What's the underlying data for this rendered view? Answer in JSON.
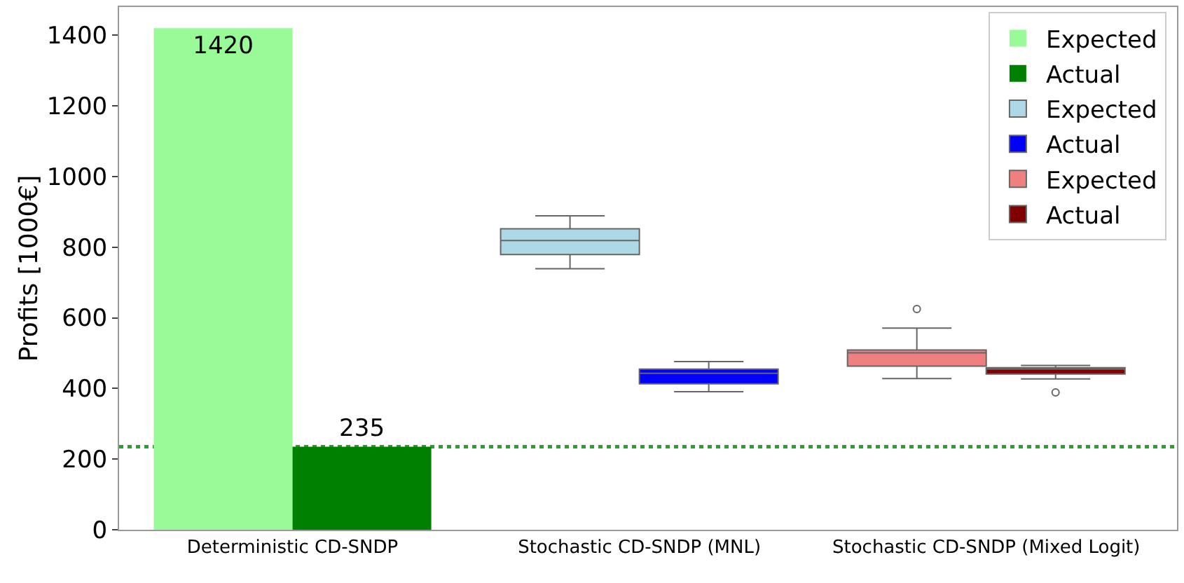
{
  "chart_data": {
    "type": "bar",
    "ylabel": "Profits [1000€]",
    "categories": [
      "Deterministic CD-SNDP",
      "Stochastic CD-SNDP (MNL)",
      "Stochastic CD-SNDP (Mixed Logit)"
    ],
    "series": [
      {
        "name": "Expected",
        "color": "#98fb98",
        "values": [
          1420,
          null,
          null
        ]
      },
      {
        "name": "Actual",
        "color": "#008000",
        "values": [
          235,
          null,
          null
        ]
      },
      {
        "name": "Expected",
        "type": "box",
        "color": "#add8e6",
        "boxes": [
          null,
          {
            "low": 739,
            "q1": 779,
            "median": 819,
            "q3": 852,
            "high": 889
          },
          null
        ]
      },
      {
        "name": "Actual",
        "type": "box",
        "color": "#0000ff",
        "boxes": [
          null,
          {
            "low": 391,
            "q1": 413,
            "median": 443,
            "q3": 455,
            "high": 476
          },
          null
        ]
      },
      {
        "name": "Expected",
        "type": "box",
        "color": "#f08080",
        "boxes": [
          null,
          null,
          {
            "low": 428,
            "q1": 463,
            "median": 501,
            "q3": 509,
            "high": 571,
            "outliers": [
              625
            ]
          }
        ]
      },
      {
        "name": "Actual",
        "type": "box",
        "color": "#800000",
        "boxes": [
          null,
          null,
          {
            "low": 427,
            "q1": 441,
            "median": 455,
            "q3": 459,
            "high": 465,
            "outliers": [
              389
            ]
          }
        ]
      }
    ],
    "data_labels": true,
    "ylim": [
      0,
      1480
    ],
    "yticks": [
      0,
      200,
      400,
      600,
      800,
      1000,
      1200,
      1400
    ],
    "ref_lines": [
      {
        "axis": "y",
        "value": 235,
        "color": "#2ca02c",
        "line_style": "dotted"
      }
    ],
    "grid": false,
    "legend": "top right"
  }
}
